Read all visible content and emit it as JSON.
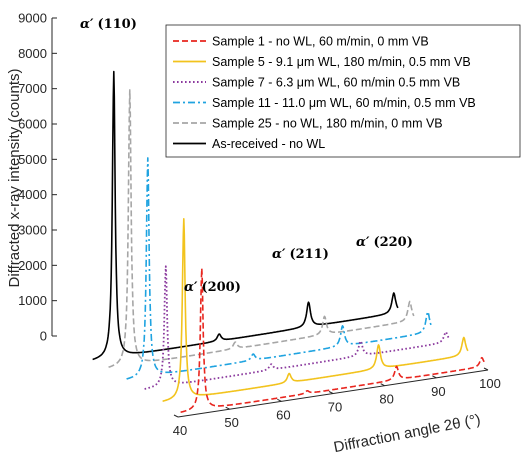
{
  "chart_data": {
    "type": "line",
    "xlabel": "Diffraction angle 2θ (°)",
    "ylabel": "Diffracted x-ray intensity (counts)",
    "x_ticks": [
      40,
      50,
      60,
      70,
      80,
      90,
      100
    ],
    "y_ticks": [
      0,
      1000,
      2000,
      3000,
      4000,
      5000,
      6000,
      7000,
      8000,
      9000
    ],
    "xlim": [
      40,
      100
    ],
    "ylim": [
      0,
      9000
    ],
    "legend_position": "top-right",
    "series": [
      {
        "name": "Sample 1 - no WL, 60 m/min, 0 mm VB",
        "color": "#e8251e",
        "dash": "dashed",
        "baseline": 100,
        "peaks": [
          [
            44.6,
            4000
          ],
          [
            65.0,
            80
          ],
          [
            82.3,
            380
          ],
          [
            98.8,
            260
          ]
        ]
      },
      {
        "name": "Sample 5 - 9.1 μm WL, 180 m/min, 0.5 mm VB",
        "color": "#f2c31d",
        "dash": "solid",
        "baseline": 150,
        "peaks": [
          [
            44.6,
            5100
          ],
          [
            65.0,
            260
          ],
          [
            82.3,
            680
          ],
          [
            98.8,
            520
          ]
        ]
      },
      {
        "name": "Sample 7 - 6.3 μm WL, 60 m/min 0.5 mm VB",
        "color": "#8b3a9e",
        "dash": "dotted",
        "baseline": 280,
        "peaks": [
          [
            44.6,
            3400
          ],
          [
            65.0,
            160
          ],
          [
            82.3,
            420
          ],
          [
            98.8,
            300
          ]
        ]
      },
      {
        "name": "Sample 11 - 11.0 μm WL, 60 m/min, 0.5 mm VB",
        "color": "#1fa3e0",
        "dash": "dashdot",
        "baseline": 320,
        "peaks": [
          [
            44.6,
            6200
          ],
          [
            65.0,
            180
          ],
          [
            82.3,
            580
          ],
          [
            98.8,
            600
          ]
        ]
      },
      {
        "name": "Sample 25 - no WL, 180 m/min, 0 mm VB",
        "color": "#a6a6a6",
        "dash": "dashed",
        "baseline": 360,
        "peaks": [
          [
            44.6,
            7800
          ],
          [
            65.0,
            190
          ],
          [
            82.3,
            520
          ],
          [
            98.8,
            560
          ]
        ]
      },
      {
        "name": "As-received - no WL",
        "color": "#000000",
        "dash": "solid",
        "baseline": 380,
        "peaks": [
          [
            44.6,
            8100
          ],
          [
            65.0,
            200
          ],
          [
            82.3,
            700
          ],
          [
            98.8,
            580
          ]
        ]
      }
    ],
    "annotations": [
      {
        "label": "α′",
        "hkl": "(110)"
      },
      {
        "label": "α′",
        "hkl": "(200)"
      },
      {
        "label": "α′",
        "hkl": "(211)"
      },
      {
        "label": "α′",
        "hkl": "(220)"
      }
    ]
  }
}
